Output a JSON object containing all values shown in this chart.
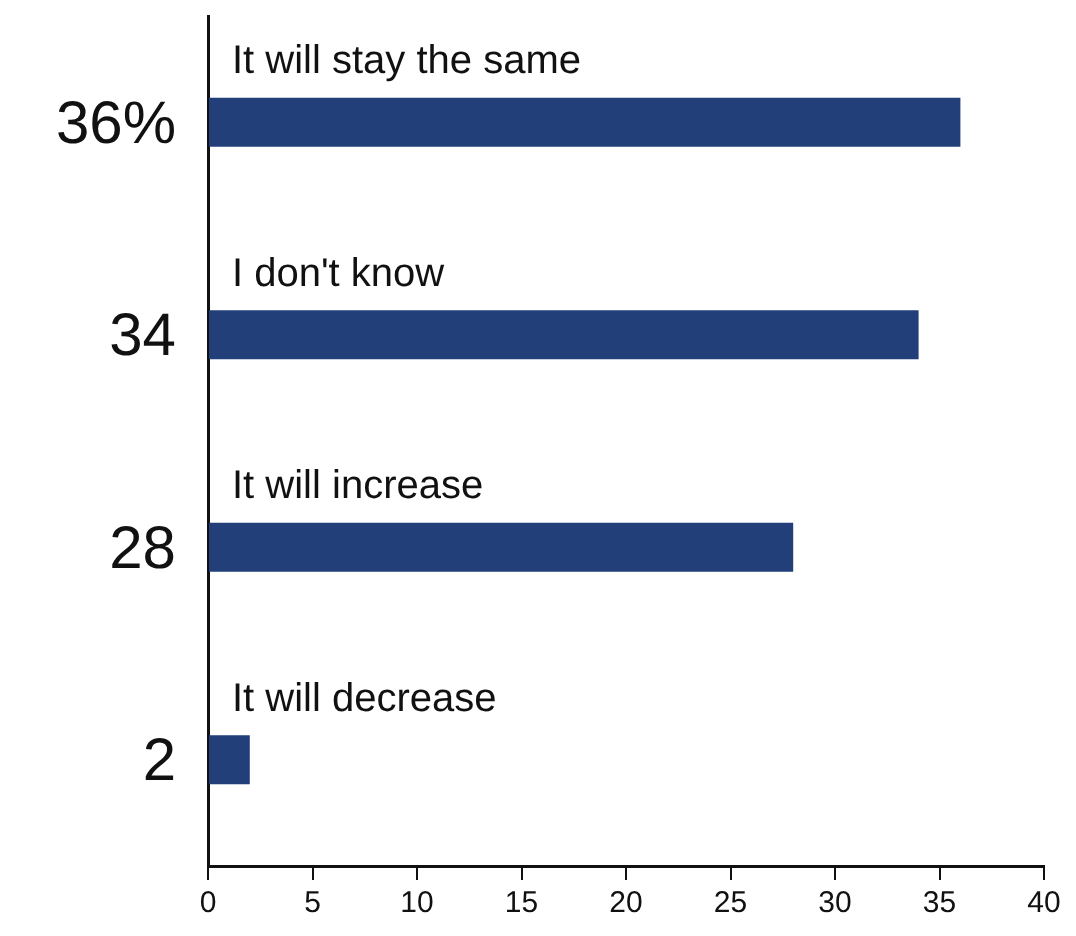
{
  "chart_data": {
    "type": "bar",
    "orientation": "horizontal",
    "categories": [
      "It will stay the same",
      "I don't know",
      "It will increase",
      "It will decrease"
    ],
    "values": [
      36,
      34,
      28,
      2
    ],
    "value_labels": [
      "36%",
      "34",
      "28",
      "2"
    ],
    "color": "#223f7a",
    "xlim": [
      0,
      40
    ],
    "xticks": [
      0,
      5,
      10,
      15,
      20,
      25,
      30,
      35,
      40
    ],
    "grid": false,
    "legend": false
  }
}
